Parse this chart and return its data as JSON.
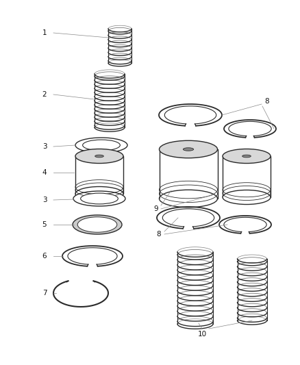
{
  "bg_color": "#ffffff",
  "line_color": "#2a2a2a",
  "label_color": "#111111",
  "fig_width": 4.38,
  "fig_height": 5.33,
  "dpi": 100
}
